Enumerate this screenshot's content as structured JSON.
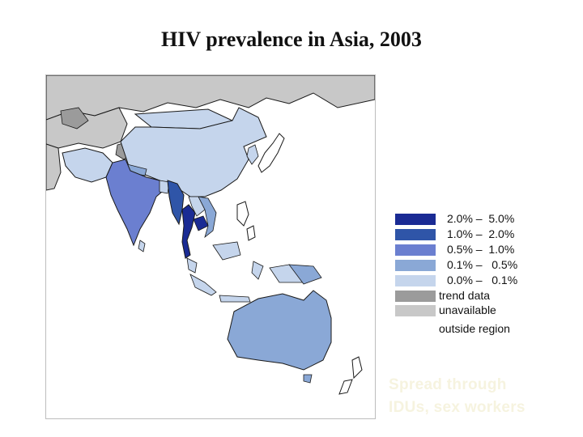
{
  "title": "HIV prevalence in Asia, 2003",
  "colors": {
    "c1": "#1a2b94",
    "c2": "#2f55a8",
    "c3": "#6b7fd0",
    "c4": "#8aa8d6",
    "c5": "#c5d5ec",
    "trend": "#9b9b9b",
    "outside": "#c8c8c8",
    "border": "#1a1a1a"
  },
  "legend": {
    "items": [
      {
        "label": "2.0% –  5.0%",
        "color": "#1a2b94"
      },
      {
        "label": "1.0% –  2.0%",
        "color": "#2f55a8"
      },
      {
        "label": "0.5% –  1.0%",
        "color": "#6b7fd0"
      },
      {
        "label": "0.1% –   0.5%",
        "color": "#8aa8d6"
      },
      {
        "label": "0.0% –   0.1%",
        "color": "#c5d5ec"
      }
    ],
    "trend_label": "trend data",
    "unavailable_label": "unavailable",
    "outside_label": "outside region"
  },
  "callout": {
    "line1": "Spread through",
    "line2": "IDUs, sex workers"
  }
}
